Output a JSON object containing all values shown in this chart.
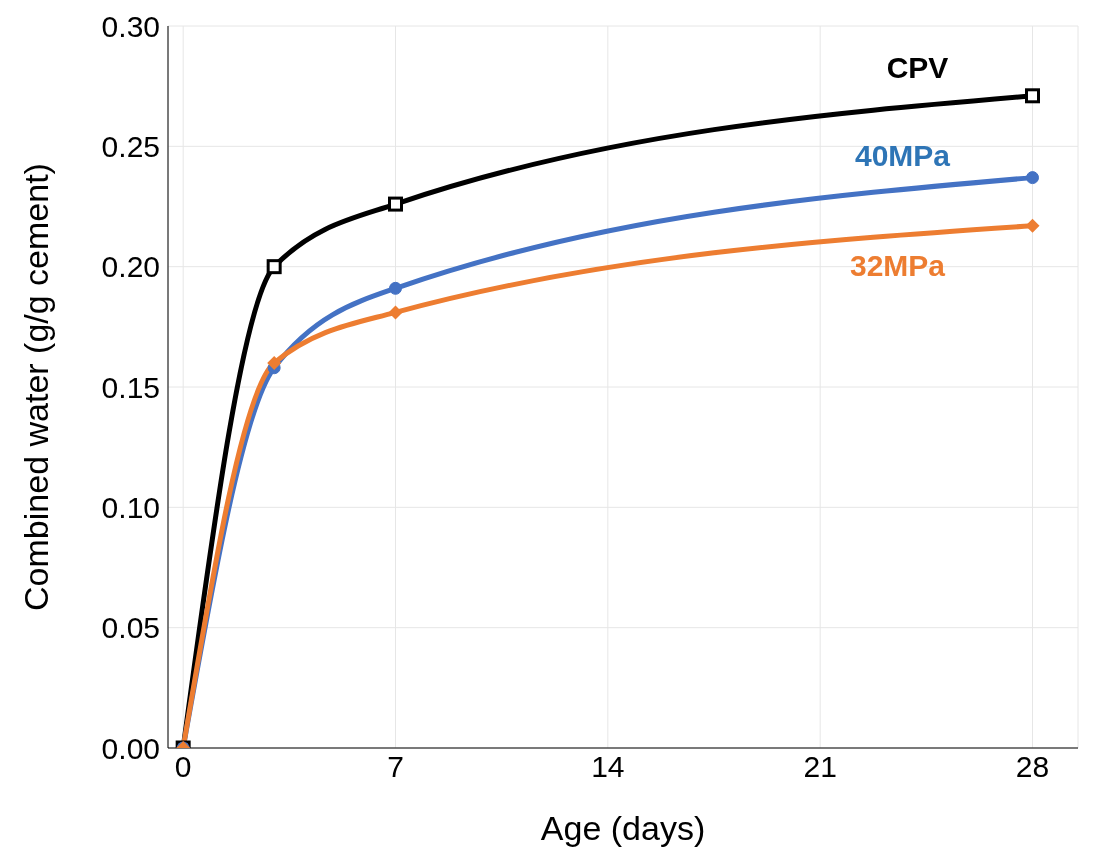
{
  "chart_data": {
    "type": "line",
    "xlabel": "Age (days)",
    "ylabel": "Combined water (g/g cement)",
    "xlim": [
      -0.5,
      29.5
    ],
    "xticks": [
      0,
      7,
      14,
      21,
      28
    ],
    "ylim": [
      0,
      0.3
    ],
    "yticks": [
      {
        "value": 0,
        "label": "0.00"
      },
      {
        "value": 0.05,
        "label": "0.05"
      },
      {
        "value": 0.1,
        "label": "0.10"
      },
      {
        "value": 0.15,
        "label": "0.15"
      },
      {
        "value": 0.2,
        "label": "0.20"
      },
      {
        "value": 0.25,
        "label": "0.25"
      },
      {
        "value": 0.3,
        "label": "0.30"
      }
    ],
    "grid": true,
    "legend": false,
    "line_style": "solid",
    "series": [
      {
        "name": "CPV",
        "color": "#000000",
        "marker": "square",
        "x": [
          0,
          3,
          7,
          28
        ],
        "values": [
          0,
          0.2,
          0.226,
          0.271
        ]
      },
      {
        "name": "40MPa",
        "color": "#4472c4",
        "marker": "circle",
        "x": [
          0,
          3,
          7,
          28
        ],
        "values": [
          0,
          0.158,
          0.191,
          0.237
        ]
      },
      {
        "name": "32MPa",
        "color": "#ed7d31",
        "marker": "diamond",
        "x": [
          0,
          3,
          7,
          28
        ],
        "values": [
          0,
          0.16,
          0.181,
          0.217
        ]
      }
    ]
  }
}
